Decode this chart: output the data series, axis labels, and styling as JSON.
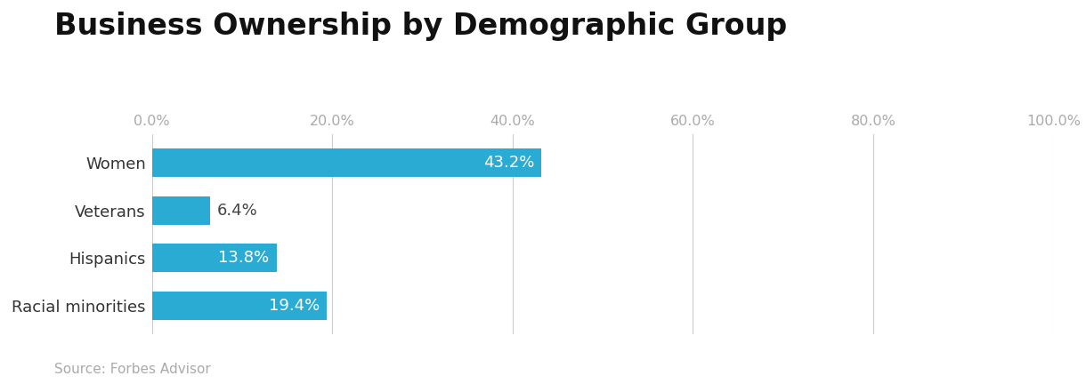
{
  "title": "Business Ownership by Demographic Group",
  "categories": [
    "Women",
    "Veterans",
    "Hispanics",
    "Racial minorities"
  ],
  "values": [
    43.2,
    6.4,
    13.8,
    19.4
  ],
  "bar_color": "#29ABD4",
  "label_color_inside": "#ffffff",
  "label_color_outside": "#444444",
  "label_threshold": 10,
  "xlim": [
    0,
    100
  ],
  "xticks": [
    0,
    20,
    40,
    60,
    80,
    100
  ],
  "xtick_labels": [
    "0.0%",
    "20.0%",
    "40.0%",
    "60.0%",
    "80.0%",
    "100.0%"
  ],
  "source_text": "Source: Forbes Advisor",
  "title_fontsize": 24,
  "tick_fontsize": 11.5,
  "label_fontsize": 13,
  "source_fontsize": 11,
  "bar_height": 0.6,
  "background_color": "#ffffff",
  "grid_color": "#cccccc",
  "xtick_color": "#aaaaaa",
  "ytick_color": "#333333",
  "ytick_fontsize": 13
}
